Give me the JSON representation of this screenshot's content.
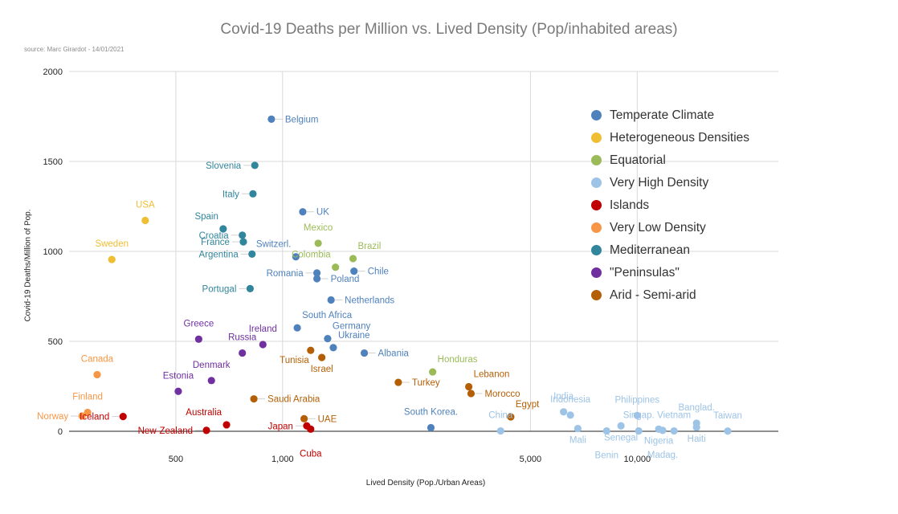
{
  "chart_data": {
    "type": "scatter",
    "title": "Covid-19 Deaths per Million vs. Lived Density (Pop/inhabited areas)",
    "source": "source: Marc Girardot - 14/01/2021",
    "xlabel": "Lived Density (Pop./Urban Areas)",
    "ylabel": "Covid-19 Deaths/Million of Pop.",
    "x_scale": "log",
    "xlim": [
      250,
      25000
    ],
    "ylim": [
      0,
      2000
    ],
    "x_ticks": [
      {
        "value": 500,
        "label": "500"
      },
      {
        "value": 1000,
        "label": "1,000"
      },
      {
        "value": 5000,
        "label": "5,000"
      },
      {
        "value": 10000,
        "label": "10,000"
      }
    ],
    "y_ticks": [
      {
        "value": 0,
        "label": "0"
      },
      {
        "value": 500,
        "label": "500"
      },
      {
        "value": 1000,
        "label": "1000"
      },
      {
        "value": 1500,
        "label": "1500"
      },
      {
        "value": 2000,
        "label": "2000"
      }
    ],
    "series": [
      {
        "name": "Temperate Climate",
        "color": "#4f81bd",
        "points": [
          {
            "label": "Belgium",
            "x": 930,
            "y": 1735,
            "pos": "right"
          },
          {
            "label": "UK",
            "x": 1140,
            "y": 1220,
            "pos": "right"
          },
          {
            "label": "Switzerl.",
            "x": 1090,
            "y": 970,
            "pos": "above-left"
          },
          {
            "label": "Romania",
            "x": 1250,
            "y": 880,
            "pos": "left"
          },
          {
            "label": "Poland",
            "x": 1250,
            "y": 848,
            "pos": "right"
          },
          {
            "label": "Chile",
            "x": 1590,
            "y": 890,
            "pos": "right"
          },
          {
            "label": "Netherlands",
            "x": 1370,
            "y": 730,
            "pos": "right"
          },
          {
            "label": "South Africa",
            "x": 1100,
            "y": 575,
            "pos": "above-right"
          },
          {
            "label": "Germany",
            "x": 1340,
            "y": 515,
            "pos": "above-right"
          },
          {
            "label": "Ukraine",
            "x": 1390,
            "y": 465,
            "pos": "above-right"
          },
          {
            "label": "Albania",
            "x": 1700,
            "y": 435,
            "pos": "right"
          },
          {
            "label": "South Korea.",
            "x": 2620,
            "y": 20,
            "pos": "above"
          }
        ]
      },
      {
        "name": "Heterogeneous Densities",
        "color": "#f0be32",
        "points": [
          {
            "label": "USA",
            "x": 410,
            "y": 1172,
            "pos": "above"
          },
          {
            "label": "Sweden",
            "x": 330,
            "y": 955,
            "pos": "above"
          }
        ]
      },
      {
        "name": "Equatorial",
        "color": "#9bbb59",
        "points": [
          {
            "label": "Mexico",
            "x": 1260,
            "y": 1045,
            "pos": "above"
          },
          {
            "label": "Brazil",
            "x": 1580,
            "y": 960,
            "pos": "above-right"
          },
          {
            "label": "Colombia",
            "x": 1410,
            "y": 912,
            "pos": "above-left"
          },
          {
            "label": "Honduras",
            "x": 2650,
            "y": 330,
            "pos": "above-right"
          }
        ]
      },
      {
        "name": "Very High Density",
        "color": "#9dc3e6",
        "points": [
          {
            "label": "China",
            "x": 4120,
            "y": 2,
            "pos": "above"
          },
          {
            "label": "India",
            "x": 6200,
            "y": 108,
            "pos": "above"
          },
          {
            "label": "Indonesia",
            "x": 6480,
            "y": 90,
            "pos": "above"
          },
          {
            "label": "Mali",
            "x": 6800,
            "y": 15,
            "pos": "below"
          },
          {
            "label": "Benin",
            "x": 8200,
            "y": 2,
            "pos": "below-far"
          },
          {
            "label": "Senegal",
            "x": 9000,
            "y": 30,
            "pos": "below"
          },
          {
            "label": "Philippines",
            "x": 10000,
            "y": 88,
            "pos": "above"
          },
          {
            "label": "Singap.",
            "x": 10100,
            "y": 2,
            "pos": "above"
          },
          {
            "label": "Madag.",
            "x": 11800,
            "y": 5,
            "pos": "below-far"
          },
          {
            "label": "Nigeria",
            "x": 11500,
            "y": 12,
            "pos": "below"
          },
          {
            "label": "Vietnam",
            "x": 12700,
            "y": 2,
            "pos": "above"
          },
          {
            "label": "Banglad.",
            "x": 14700,
            "y": 45,
            "pos": "above"
          },
          {
            "label": "Haiti",
            "x": 14700,
            "y": 22,
            "pos": "below"
          },
          {
            "label": "Taiwan",
            "x": 18000,
            "y": 1,
            "pos": "above"
          }
        ]
      },
      {
        "name": "Islands",
        "color": "#c00000",
        "points": [
          {
            "label": "Iceland",
            "x": 355,
            "y": 82,
            "pos": "left"
          },
          {
            "label": "Australia",
            "x": 695,
            "y": 36,
            "pos": "above-left"
          },
          {
            "label": "New-Zealand",
            "x": 610,
            "y": 5,
            "pos": "left"
          },
          {
            "label": "Japan",
            "x": 1170,
            "y": 30,
            "pos": "left"
          },
          {
            "label": "Cuba",
            "x": 1200,
            "y": 12,
            "pos": "below-far"
          }
        ]
      },
      {
        "name": "Very Low Density",
        "color": "#f79646",
        "points": [
          {
            "label": "Canada",
            "x": 300,
            "y": 315,
            "pos": "above"
          },
          {
            "label": "Finland",
            "x": 282,
            "y": 105,
            "pos": "above"
          },
          {
            "label": "Norway",
            "x": 272,
            "y": 85,
            "pos": "left"
          }
        ]
      },
      {
        "name": "Mediterranean",
        "color": "#31859c",
        "points": [
          {
            "label": "Slovenia",
            "x": 835,
            "y": 1478,
            "pos": "left"
          },
          {
            "label": "Italy",
            "x": 825,
            "y": 1320,
            "pos": "left"
          },
          {
            "label": "Spain",
            "x": 680,
            "y": 1125,
            "pos": "above-left"
          },
          {
            "label": "Croatia",
            "x": 770,
            "y": 1090,
            "pos": "left"
          },
          {
            "label": "France",
            "x": 775,
            "y": 1053,
            "pos": "left"
          },
          {
            "label": "Argentina",
            "x": 820,
            "y": 985,
            "pos": "left"
          },
          {
            "label": "Portugal",
            "x": 810,
            "y": 793,
            "pos": "left"
          }
        ]
      },
      {
        "name": "\"Peninsulas\"",
        "color": "#7030a0",
        "points": [
          {
            "label": "Greece",
            "x": 580,
            "y": 512,
            "pos": "above"
          },
          {
            "label": "Ireland",
            "x": 880,
            "y": 482,
            "pos": "above"
          },
          {
            "label": "Russia",
            "x": 770,
            "y": 435,
            "pos": "above"
          },
          {
            "label": "Denmark",
            "x": 630,
            "y": 282,
            "pos": "above"
          },
          {
            "label": "Estonia",
            "x": 508,
            "y": 222,
            "pos": "above"
          }
        ]
      },
      {
        "name": "Arid - Semi-arid",
        "color": "#b45f06",
        "points": [
          {
            "label": "Tunisia",
            "x": 1200,
            "y": 450,
            "pos": "below-left"
          },
          {
            "label": "Israel",
            "x": 1290,
            "y": 410,
            "pos": "below"
          },
          {
            "label": "Turkey",
            "x": 2120,
            "y": 272,
            "pos": "right"
          },
          {
            "label": "Lebanon",
            "x": 3350,
            "y": 248,
            "pos": "above-right"
          },
          {
            "label": "Morocco",
            "x": 3400,
            "y": 210,
            "pos": "right"
          },
          {
            "label": "Saudi Arabia",
            "x": 830,
            "y": 180,
            "pos": "right"
          },
          {
            "label": "UAE",
            "x": 1150,
            "y": 70,
            "pos": "right"
          },
          {
            "label": "Egypt",
            "x": 4400,
            "y": 80,
            "pos": "above-right"
          }
        ]
      }
    ]
  }
}
